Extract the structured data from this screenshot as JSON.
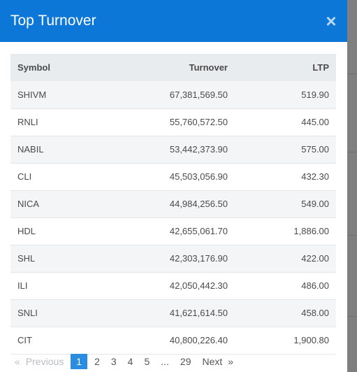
{
  "modal": {
    "title": "Top Turnover",
    "close_symbol": "×",
    "close_icon": "close-icon"
  },
  "table": {
    "headers": [
      "Symbol",
      "Turnover",
      "LTP"
    ],
    "rows": [
      [
        "SHIVM",
        "67,381,569.50",
        "519.90"
      ],
      [
        "RNLI",
        "55,760,572.50",
        "445.00"
      ],
      [
        "NABIL",
        "53,442,373.90",
        "575.00"
      ],
      [
        "CLI",
        "45,503,056.90",
        "432.30"
      ],
      [
        "NICA",
        "44,984,256.50",
        "549.00"
      ],
      [
        "HDL",
        "42,655,061.70",
        "1,886.00"
      ],
      [
        "SHL",
        "42,303,176.90",
        "422.00"
      ],
      [
        "ILI",
        "42,050,442.30",
        "486.00"
      ],
      [
        "SNLI",
        "41,621,614.50",
        "458.00"
      ],
      [
        "CIT",
        "40,800,226.40",
        "1,900.80"
      ]
    ]
  },
  "pagination": {
    "prev_arrow": "«",
    "prev_label": "Previous",
    "pages": [
      "1",
      "2",
      "3",
      "4",
      "5",
      "...",
      "29"
    ],
    "active_page": "1",
    "next_label": "Next",
    "next_arrow": "»"
  }
}
